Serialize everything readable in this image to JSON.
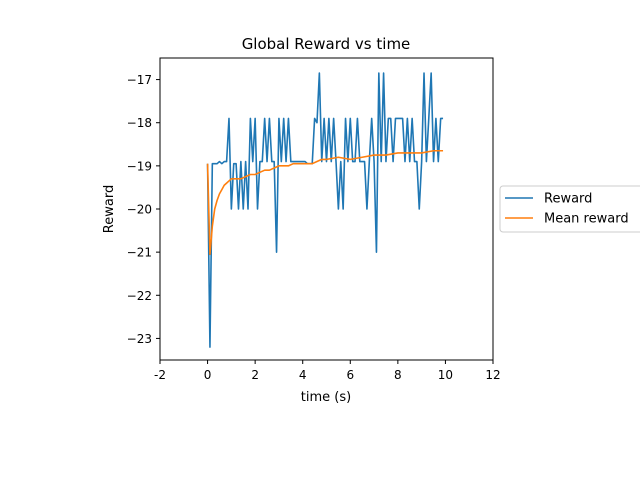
{
  "chart_data": {
    "type": "line",
    "title": "Global Reward vs time",
    "xlabel": "time (s)",
    "ylabel": "Reward",
    "xlim": [
      -2,
      12
    ],
    "ylim": [
      -23.5,
      -16.5
    ],
    "xticks": [
      -2,
      0,
      2,
      4,
      6,
      8,
      10,
      12
    ],
    "xtick_labels": [
      "-2",
      "0",
      "2",
      "4",
      "6",
      "8",
      "10",
      "12"
    ],
    "yticks": [
      -23,
      -22,
      -21,
      -20,
      -19,
      -18,
      -17
    ],
    "ytick_labels": [
      "−23",
      "−22",
      "−21",
      "−20",
      "−19",
      "−18",
      "−17"
    ],
    "grid": false,
    "legend_position": "outside-right",
    "series": [
      {
        "name": "Reward",
        "color": "#1f77b4",
        "x": [
          0,
          0.1,
          0.2,
          0.3,
          0.4,
          0.5,
          0.6,
          0.7,
          0.8,
          0.9,
          1.0,
          1.1,
          1.2,
          1.3,
          1.4,
          1.5,
          1.6,
          1.7,
          1.8,
          1.9,
          2.0,
          2.1,
          2.2,
          2.3,
          2.4,
          2.5,
          2.6,
          2.7,
          2.8,
          2.9,
          3.0,
          3.1,
          3.2,
          3.3,
          3.4,
          3.5,
          3.6,
          3.7,
          3.8,
          3.9,
          4.0,
          4.1,
          4.2,
          4.3,
          4.4,
          4.5,
          4.6,
          4.7,
          4.8,
          4.9,
          5.0,
          5.1,
          5.2,
          5.3,
          5.4,
          5.5,
          5.6,
          5.7,
          5.8,
          5.9,
          6.0,
          6.1,
          6.2,
          6.3,
          6.4,
          6.5,
          6.6,
          6.7,
          6.8,
          6.9,
          7.0,
          7.1,
          7.2,
          7.3,
          7.4,
          7.5,
          7.6,
          7.7,
          7.8,
          7.9,
          8.0,
          8.1,
          8.2,
          8.3,
          8.4,
          8.5,
          8.6,
          8.7,
          8.8,
          8.9,
          9.0,
          9.1,
          9.2,
          9.3,
          9.4,
          9.5,
          9.6,
          9.7,
          9.8,
          9.9
        ],
        "values": [
          -18.95,
          -23.2,
          -18.95,
          -18.95,
          -18.95,
          -18.9,
          -18.95,
          -18.9,
          -18.9,
          -17.9,
          -20.0,
          -18.95,
          -18.95,
          -20.0,
          -18.9,
          -20.0,
          -18.9,
          -20.0,
          -17.9,
          -18.9,
          -17.9,
          -20.0,
          -18.9,
          -18.9,
          -17.9,
          -18.9,
          -17.9,
          -18.9,
          -18.9,
          -21.0,
          -17.9,
          -18.9,
          -17.9,
          -18.9,
          -17.9,
          -18.9,
          -18.9,
          -18.9,
          -18.9,
          -18.9,
          -18.9,
          -18.9,
          -18.95,
          -18.95,
          -18.95,
          -17.9,
          -18.0,
          -16.85,
          -18.9,
          -17.9,
          -18.9,
          -17.9,
          -18.9,
          -17.9,
          -18.9,
          -20.0,
          -18.9,
          -20.0,
          -17.9,
          -18.9,
          -17.9,
          -18.9,
          -18.9,
          -17.9,
          -18.9,
          -18.9,
          -18.9,
          -20.0,
          -18.9,
          -17.9,
          -18.9,
          -21.0,
          -16.85,
          -18.9,
          -16.85,
          -18.9,
          -17.9,
          -17.9,
          -18.9,
          -17.9,
          -17.9,
          -17.9,
          -17.9,
          -18.9,
          -17.9,
          -18.9,
          -17.9,
          -18.9,
          -18.9,
          -20.0,
          -18.9,
          -16.85,
          -18.9,
          -17.9,
          -16.85,
          -18.9,
          -17.9,
          -18.9,
          -17.9,
          -17.9
        ]
      },
      {
        "name": "Mean reward",
        "color": "#ff7f0e",
        "x": [
          0,
          0.1,
          0.2,
          0.3,
          0.4,
          0.5,
          0.6,
          0.7,
          0.8,
          0.9,
          1.0,
          1.2,
          1.4,
          1.6,
          1.8,
          2.0,
          2.2,
          2.4,
          2.6,
          2.8,
          3.0,
          3.2,
          3.4,
          3.6,
          3.8,
          4.0,
          4.2,
          4.4,
          4.6,
          4.8,
          5.0,
          5.5,
          6.0,
          6.5,
          7.0,
          7.5,
          8.0,
          8.5,
          9.0,
          9.5,
          9.9
        ],
        "values": [
          -18.95,
          -21.05,
          -20.4,
          -20.0,
          -19.8,
          -19.65,
          -19.55,
          -19.45,
          -19.4,
          -19.35,
          -19.3,
          -19.3,
          -19.3,
          -19.25,
          -19.2,
          -19.2,
          -19.15,
          -19.1,
          -19.1,
          -19.05,
          -19.0,
          -19.0,
          -19.0,
          -18.95,
          -18.95,
          -18.95,
          -18.95,
          -18.95,
          -18.9,
          -18.85,
          -18.85,
          -18.8,
          -18.85,
          -18.8,
          -18.75,
          -18.75,
          -18.7,
          -18.7,
          -18.7,
          -18.65,
          -18.65
        ]
      }
    ]
  }
}
